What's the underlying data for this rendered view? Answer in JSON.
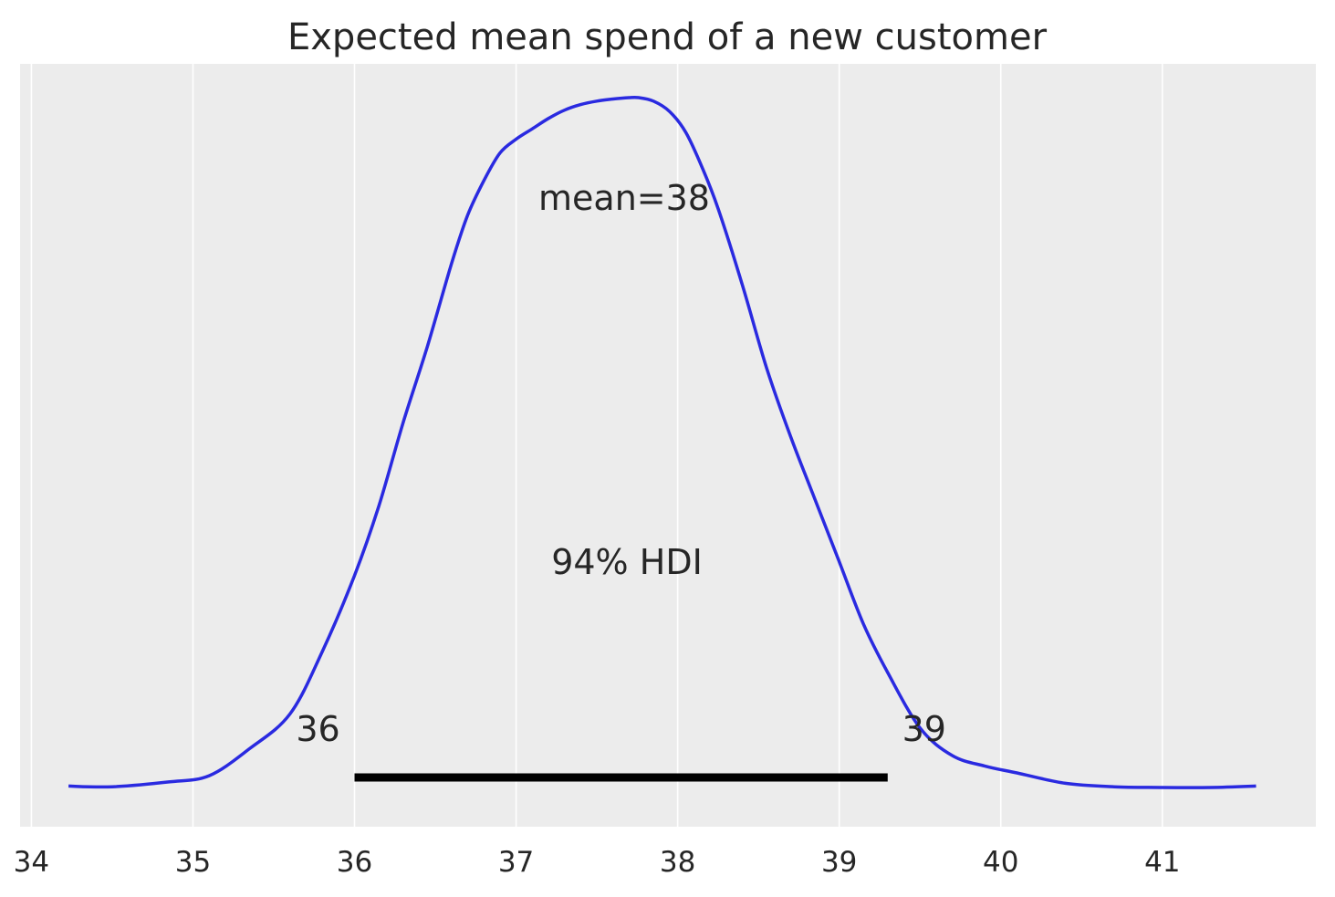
{
  "chart_data": {
    "type": "area",
    "title": "Expected mean spend of a new customer",
    "xlabel": "",
    "ylabel": "",
    "xlim": [
      33.93,
      41.95
    ],
    "ylim": [
      0,
      1.0
    ],
    "x_ticks": [
      "34",
      "35",
      "36",
      "37",
      "38",
      "39",
      "40",
      "41"
    ],
    "x_tick_values": [
      34,
      35,
      36,
      37,
      38,
      39,
      40,
      41
    ],
    "grid": true,
    "background_color": "#ececec",
    "grid_color": "#ffffff",
    "series": [
      {
        "color": "#2a2ae0",
        "x": [
          34.23,
          34.5,
          34.85,
          35.1,
          35.35,
          35.6,
          35.8,
          36.0,
          36.15,
          36.3,
          36.45,
          36.6,
          36.7,
          36.8,
          36.9,
          37.0,
          37.1,
          37.2,
          37.3,
          37.4,
          37.5,
          37.6,
          37.7,
          37.76,
          37.85,
          37.95,
          38.05,
          38.15,
          38.25,
          38.4,
          38.55,
          38.7,
          38.85,
          39.0,
          39.15,
          39.3,
          39.5,
          39.7,
          39.9,
          40.1,
          40.4,
          40.7,
          41.0,
          41.3,
          41.58
        ],
        "density": [
          0.006,
          0.005,
          0.012,
          0.021,
          0.06,
          0.11,
          0.2,
          0.31,
          0.41,
          0.53,
          0.64,
          0.76,
          0.83,
          0.88,
          0.92,
          0.94,
          0.955,
          0.97,
          0.982,
          0.99,
          0.995,
          0.998,
          1.0,
          1.0,
          0.995,
          0.98,
          0.95,
          0.9,
          0.84,
          0.73,
          0.61,
          0.51,
          0.42,
          0.33,
          0.24,
          0.17,
          0.09,
          0.05,
          0.035,
          0.025,
          0.01,
          0.005,
          0.004,
          0.004,
          0.006
        ]
      }
    ],
    "hdi": {
      "low": 36.0,
      "high": 39.3,
      "label": "94% HDI",
      "low_label": "36",
      "high_label": "39"
    },
    "mean_label": "mean=38"
  }
}
